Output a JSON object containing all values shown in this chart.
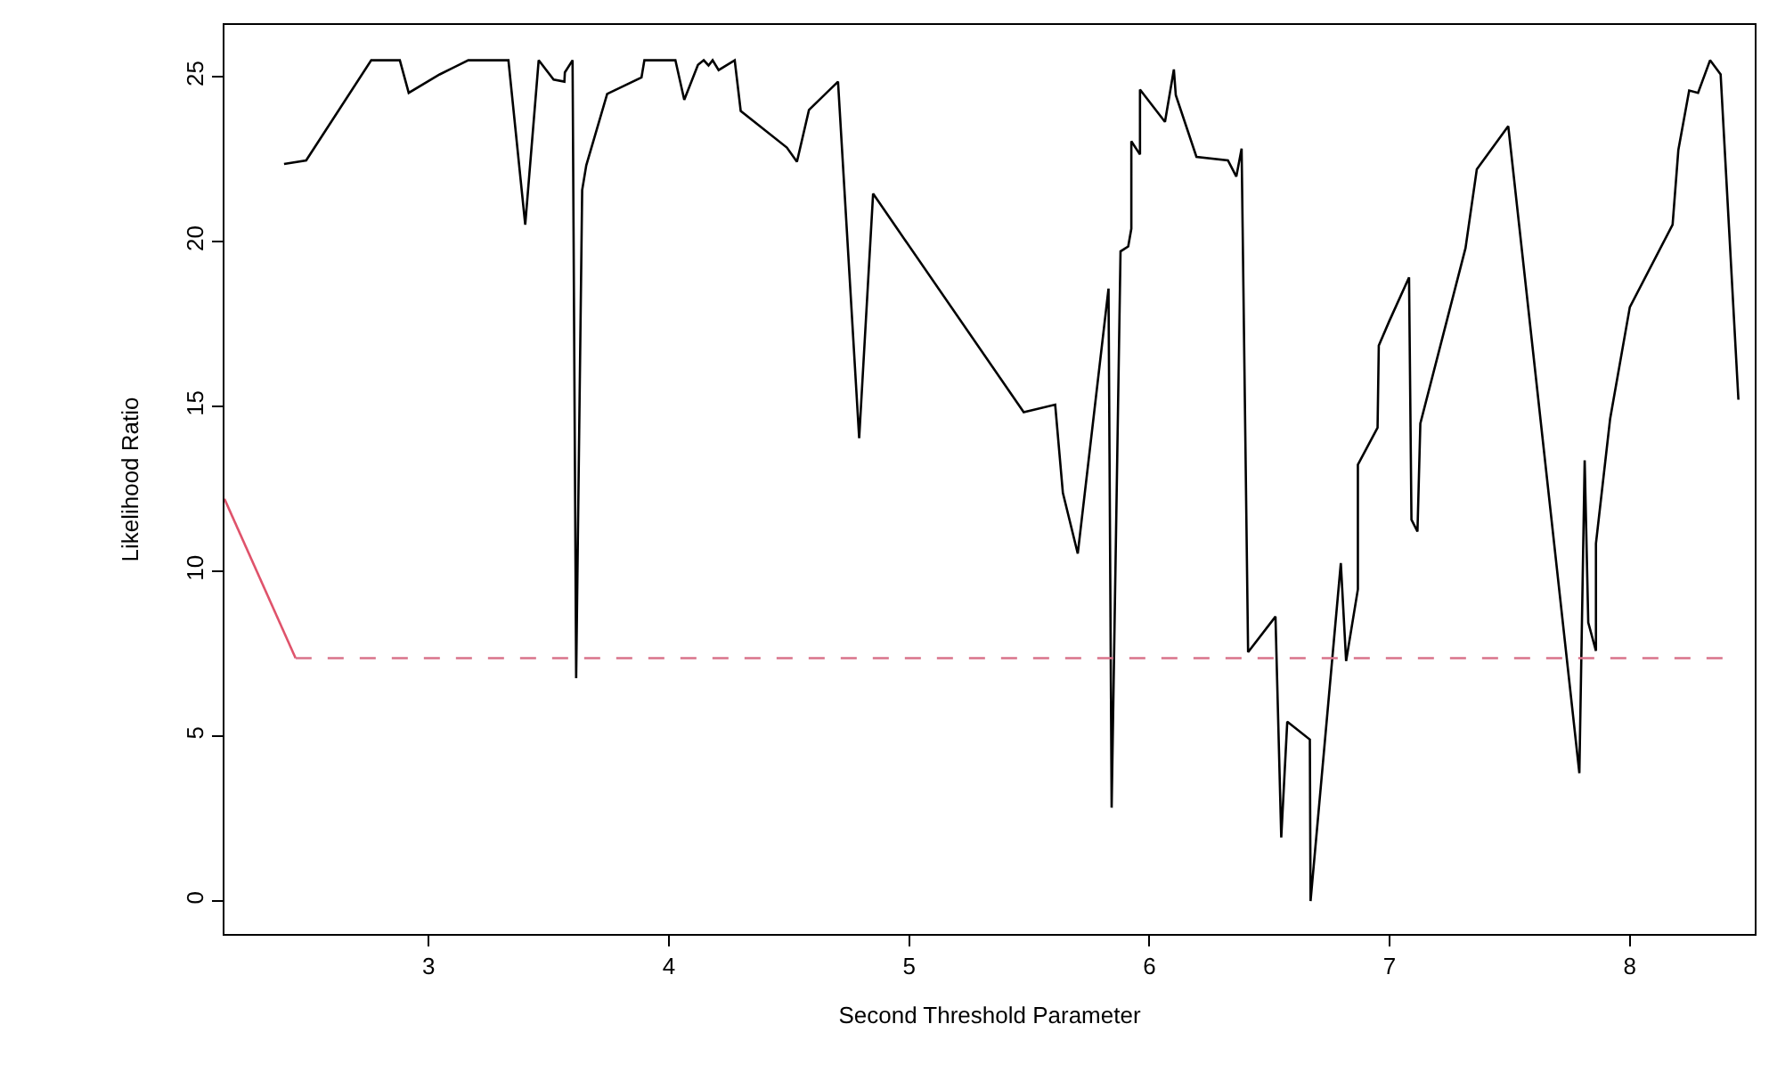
{
  "chart_data": {
    "type": "line",
    "xlabel": "Second Threshold Parameter",
    "ylabel": "Likelihood Ratio",
    "xlim": [
      2.15,
      8.52
    ],
    "ylim": [
      -1.0,
      26.58
    ],
    "xticks": [
      3,
      4,
      5,
      6,
      7,
      8
    ],
    "yticks": [
      0,
      5,
      10,
      15,
      20,
      25
    ],
    "marker": "none",
    "series": [
      {
        "color": "#000000",
        "line_style": "solid",
        "x": [
          2.398,
          2.49,
          2.761,
          2.88,
          2.917,
          3.046,
          3.165,
          3.332,
          3.402,
          3.458,
          3.52,
          3.565,
          3.567,
          3.599,
          3.614,
          3.639,
          3.656,
          3.743,
          3.886,
          3.898,
          4.027,
          4.064,
          4.121,
          4.145,
          4.165,
          4.182,
          4.207,
          4.274,
          4.299,
          4.491,
          4.533,
          4.583,
          4.704,
          4.792,
          4.85,
          5.477,
          5.608,
          5.64,
          5.702,
          5.83,
          5.843,
          5.88,
          5.912,
          5.925,
          5.925,
          5.961,
          5.961,
          6.065,
          6.102,
          6.11,
          6.196,
          6.327,
          6.362,
          6.384,
          6.411,
          6.525,
          6.549,
          6.574,
          6.668,
          6.671,
          6.797,
          6.819,
          6.868,
          6.868,
          6.95,
          6.955,
          6.999,
          7.081,
          7.091,
          7.116,
          7.128,
          7.316,
          7.363,
          7.494,
          7.79,
          7.812,
          7.827,
          7.859,
          7.859,
          7.918,
          8.0,
          8.178,
          8.202,
          8.247,
          8.284,
          8.334,
          8.378,
          8.452
        ],
        "values": [
          22.36,
          22.47,
          25.51,
          25.51,
          24.52,
          25.08,
          25.51,
          25.51,
          20.52,
          25.51,
          24.92,
          24.86,
          25.14,
          25.51,
          6.76,
          21.57,
          22.32,
          24.49,
          24.99,
          25.51,
          25.51,
          24.31,
          25.37,
          25.51,
          25.35,
          25.51,
          25.21,
          25.51,
          23.97,
          22.86,
          22.43,
          24.0,
          24.86,
          14.04,
          21.46,
          14.83,
          15.06,
          12.38,
          10.54,
          18.58,
          2.83,
          19.71,
          19.86,
          20.4,
          23.05,
          22.65,
          24.62,
          23.64,
          25.23,
          24.45,
          22.58,
          22.47,
          21.98,
          22.83,
          7.55,
          8.63,
          1.93,
          5.44,
          4.9,
          0.0,
          10.25,
          7.28,
          9.46,
          13.24,
          14.36,
          16.85,
          17.6,
          18.92,
          11.57,
          11.21,
          14.49,
          19.81,
          22.2,
          23.51,
          3.88,
          13.37,
          8.45,
          7.59,
          10.85,
          14.63,
          18.02,
          20.52,
          22.79,
          24.59,
          24.52,
          25.51,
          25.08,
          15.21
        ]
      },
      {
        "color": "#df536b",
        "line_style": "solid",
        "x": [
          2.15,
          2.446
        ],
        "values": [
          12.2,
          7.37
        ]
      },
      {
        "color": "#d9738a",
        "line_style": "dashed",
        "x": [
          2.446,
          8.39
        ],
        "values": [
          7.37,
          7.37
        ]
      }
    ]
  }
}
